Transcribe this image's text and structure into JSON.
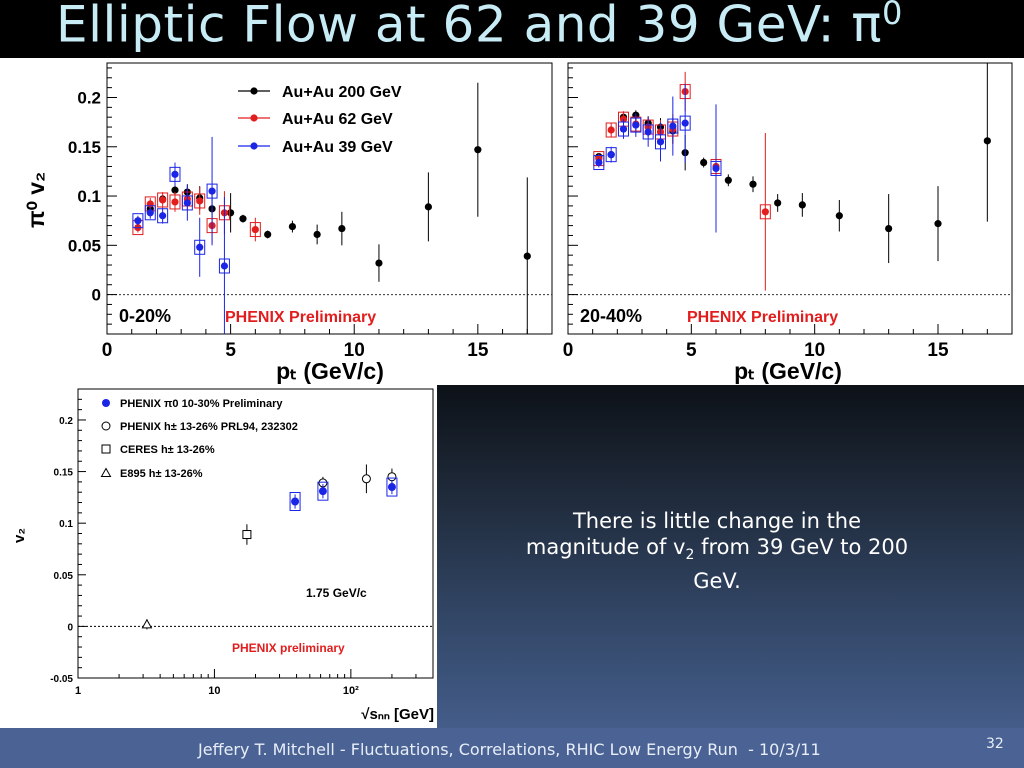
{
  "slide": {
    "title": "Elliptic Flow at 62 and 39 GeV: π",
    "title_sup": "0",
    "note_line1": "There is little change in the",
    "note_line2a": "magnitude of v",
    "note_line2sub": "2",
    "note_line2b": " from 39 GeV to 200",
    "note_line3": "GeV.",
    "footer": "Jeffery T. Mitchell - Fluctuations, Correlations, RHIC Low Energy Run  - 10/3/11",
    "slide_number": "32"
  },
  "chart_data": [
    {
      "type": "scatter",
      "panel": "left",
      "xlabel": "p_T (GeV/c)",
      "ylabel": "π0 v2",
      "xlim": [
        0,
        18
      ],
      "ylim": [
        -0.04,
        0.235
      ],
      "xticks": [
        "0",
        "5",
        "10",
        "15"
      ],
      "yticks": [
        "0",
        "0.05",
        "0.1",
        "0.15",
        "0.2"
      ],
      "centrality_label": "0-20%",
      "annotation": "PHENIX Preliminary",
      "series": [
        {
          "name": "Au+Au 200 GeV",
          "color": "#000000",
          "boxed": false,
          "points": [
            [
              1.75,
              0.087,
              0.003
            ],
            [
              2.25,
              0.097,
              0.004
            ],
            [
              2.75,
              0.106,
              0.006
            ],
            [
              3.25,
              0.104,
              0.008
            ],
            [
              3.75,
              0.098,
              0.012
            ],
            [
              4.25,
              0.087,
              0.015
            ],
            [
              5.0,
              0.083,
              0.02
            ],
            [
              5.5,
              0.077,
              0.004
            ],
            [
              6.5,
              0.061,
              0.004
            ],
            [
              7.5,
              0.069,
              0.006
            ],
            [
              8.5,
              0.061,
              0.01
            ],
            [
              9.5,
              0.067,
              0.017
            ],
            [
              11.0,
              0.032,
              0.019
            ],
            [
              13.0,
              0.089,
              0.035
            ],
            [
              15.0,
              0.147,
              0.068
            ],
            [
              17.0,
              0.039,
              0.08
            ]
          ]
        },
        {
          "name": "Au+Au 62 GeV",
          "color": "#e21d1d",
          "boxed": true,
          "points": [
            [
              1.25,
              0.068,
              0.005
            ],
            [
              1.75,
              0.092,
              0.006
            ],
            [
              2.25,
              0.096,
              0.008
            ],
            [
              2.75,
              0.094,
              0.01
            ],
            [
              3.25,
              0.097,
              0.012
            ],
            [
              3.75,
              0.095,
              0.014
            ],
            [
              4.25,
              0.07,
              0.018
            ],
            [
              4.75,
              0.083,
              0.022
            ],
            [
              6.0,
              0.066,
              0.012
            ]
          ]
        },
        {
          "name": "Au+Au 39 GeV",
          "color": "#1a25e6",
          "boxed": true,
          "points": [
            [
              1.25,
              0.075,
              0.005
            ],
            [
              1.75,
              0.083,
              0.006
            ],
            [
              2.25,
              0.08,
              0.008
            ],
            [
              2.75,
              0.122,
              0.012
            ],
            [
              3.25,
              0.093,
              0.018
            ],
            [
              3.75,
              0.048,
              0.03
            ],
            [
              4.25,
              0.105,
              0.055
            ],
            [
              4.75,
              0.029,
              0.07
            ]
          ]
        }
      ]
    },
    {
      "type": "scatter",
      "panel": "right",
      "xlabel": "p_T (GeV/c)",
      "xlim": [
        0,
        18
      ],
      "ylim": [
        -0.04,
        0.235
      ],
      "xticks": [
        "0",
        "5",
        "10",
        "15"
      ],
      "centrality_label": "20-40%",
      "annotation": "PHENIX Preliminary",
      "series": [
        {
          "name": "Au+Au 200 GeV",
          "color": "#000000",
          "boxed": false,
          "points": [
            [
              1.25,
              0.14,
              0.003
            ],
            [
              1.75,
              0.142,
              0.003
            ],
            [
              2.25,
              0.18,
              0.004
            ],
            [
              2.75,
              0.182,
              0.005
            ],
            [
              3.25,
              0.174,
              0.007
            ],
            [
              3.75,
              0.17,
              0.009
            ],
            [
              4.25,
              0.166,
              0.013
            ],
            [
              4.75,
              0.144,
              0.018
            ],
            [
              5.5,
              0.134,
              0.005
            ],
            [
              6.5,
              0.116,
              0.006
            ],
            [
              7.5,
              0.112,
              0.008
            ],
            [
              8.5,
              0.093,
              0.009
            ],
            [
              9.5,
              0.091,
              0.012
            ],
            [
              11.0,
              0.08,
              0.016
            ],
            [
              13.0,
              0.067,
              0.035
            ],
            [
              15.0,
              0.072,
              0.038
            ],
            [
              17.0,
              0.156,
              0.082
            ]
          ]
        },
        {
          "name": "Au+Au 62 GeV",
          "color": "#e21d1d",
          "boxed": true,
          "points": [
            [
              1.25,
              0.138,
              0.005
            ],
            [
              1.75,
              0.167,
              0.007
            ],
            [
              2.25,
              0.178,
              0.008
            ],
            [
              2.75,
              0.173,
              0.009
            ],
            [
              3.25,
              0.17,
              0.01
            ],
            [
              3.75,
              0.165,
              0.012
            ],
            [
              4.25,
              0.168,
              0.015
            ],
            [
              4.75,
              0.206,
              0.02
            ],
            [
              6.0,
              0.13,
              0.012
            ],
            [
              8.0,
              0.084,
              0.08
            ]
          ]
        },
        {
          "name": "Au+Au 39 GeV",
          "color": "#1a25e6",
          "boxed": true,
          "points": [
            [
              1.25,
              0.134,
              0.005
            ],
            [
              1.75,
              0.142,
              0.008
            ],
            [
              2.25,
              0.168,
              0.01
            ],
            [
              2.75,
              0.172,
              0.012
            ],
            [
              3.25,
              0.165,
              0.015
            ],
            [
              3.75,
              0.155,
              0.02
            ],
            [
              4.25,
              0.171,
              0.03
            ],
            [
              4.75,
              0.174,
              0.04
            ],
            [
              6.0,
              0.128,
              0.065
            ]
          ]
        }
      ]
    },
    {
      "type": "scatter",
      "panel": "bottom",
      "xlabel": "√s_NN [GeV]",
      "ylabel": "v2",
      "xscale": "log",
      "xlim": [
        1,
        400
      ],
      "ylim": [
        -0.05,
        0.23
      ],
      "xticks": [
        "1",
        "10",
        "10²"
      ],
      "yticks": [
        "-0.05",
        "0",
        "0.05",
        "0.1",
        "0.15",
        "0.2"
      ],
      "annotation_pt": "1.75 GeV/c",
      "annotation": "PHENIX preliminary",
      "legend": [
        {
          "marker": "filled-circle",
          "label": "PHENIX π0 10-30% Preliminary"
        },
        {
          "marker": "open-circle",
          "label": "PHENIX h± 13-26% PRL94, 232302"
        },
        {
          "marker": "open-square",
          "label": "CERES h±  13-26%"
        },
        {
          "marker": "open-triangle",
          "label": "E895 h±      13-26%"
        }
      ],
      "series": [
        {
          "name": "PHENIX π0 10-30% Preliminary",
          "marker": "filled-circle",
          "color": "#1a25e6",
          "boxed": true,
          "points": [
            [
              39,
              0.121,
              0.004
            ],
            [
              62.4,
              0.131,
              0.004
            ],
            [
              200,
              0.135,
              0.004
            ]
          ]
        },
        {
          "name": "PHENIX h± 13-26% PRL94, 232302",
          "marker": "open-circle",
          "color": "#000000",
          "points": [
            [
              62.4,
              0.139,
              0.003
            ],
            [
              130,
              0.143,
              0.011
            ],
            [
              200,
              0.145,
              0.005
            ]
          ]
        },
        {
          "name": "CERES h±  13-26%",
          "marker": "open-square",
          "color": "#000000",
          "points": [
            [
              17.3,
              0.089,
              0.007
            ]
          ]
        },
        {
          "name": "E895 h±      13-26%",
          "marker": "open-triangle",
          "color": "#000000",
          "points": [
            [
              3.2,
              0.002,
              0.002
            ]
          ]
        }
      ]
    }
  ]
}
